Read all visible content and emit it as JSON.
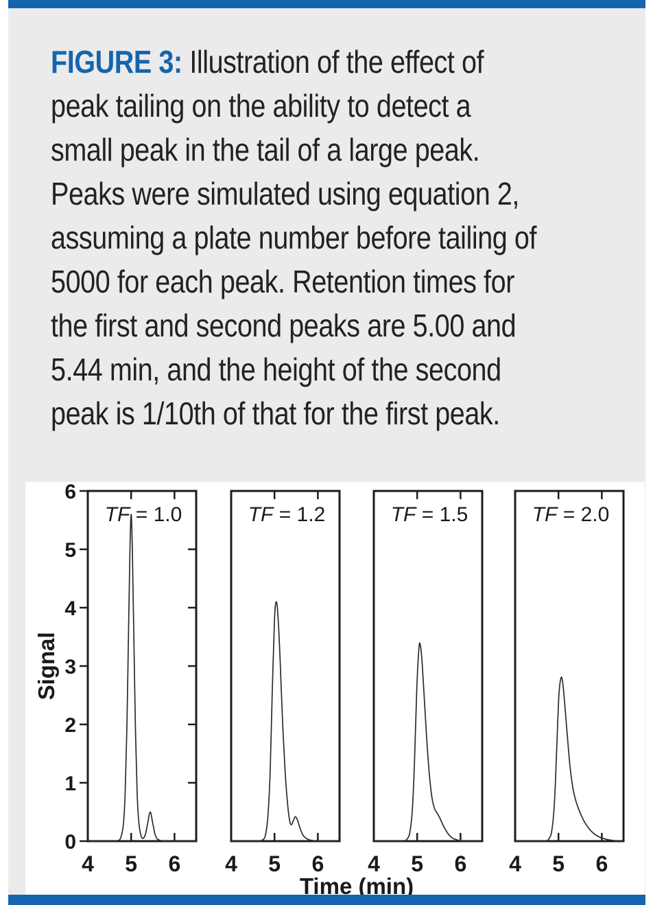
{
  "colors": {
    "accent_blue": "#1565ae",
    "box_gray": "#ebebeb",
    "caption_text": "#222222",
    "curve": "#2b2b2b",
    "axis": "#1c1c1c"
  },
  "caption": {
    "label": "FIGURE 3:",
    "lines": [
      " Illustration of the effect of",
      "peak tailing on the ability to detect a",
      "small peak in the tail of a large peak.",
      "Peaks were simulated using equation 2,",
      "assuming a plate number before tailing of",
      "5000 for each peak. Retention times for",
      "the first and second peaks are 5.00 and",
      "5.44 min, and the height of the second",
      "peak is 1/10th of that for the first peak."
    ]
  },
  "chart_data": {
    "type": "line",
    "title": "",
    "xlabel": "Time (min)",
    "ylabel": "Signal",
    "xlim": [
      4,
      6.5
    ],
    "ylim": [
      0,
      6
    ],
    "x_ticks": [
      4,
      5,
      6
    ],
    "y_ticks": [
      0,
      1,
      2,
      3,
      4,
      5,
      6
    ],
    "grid": false,
    "legend": "none",
    "panels": [
      {
        "tailing_factor": 1.0,
        "label_italic": "TF",
        "label_rest": " = 1.0",
        "peak1": {
          "retention_min": 5.0,
          "height": 5.6
        },
        "peak2": {
          "retention_min": 5.44,
          "height": 0.5
        },
        "series_points": [
          [
            4,
            0
          ],
          [
            4.35,
            0
          ],
          [
            4.6,
            0
          ],
          [
            4.7,
            0.01
          ],
          [
            4.76,
            0.06
          ],
          [
            4.82,
            0.28
          ],
          [
            4.86,
            0.8
          ],
          [
            4.9,
            1.9
          ],
          [
            4.94,
            3.6
          ],
          [
            4.97,
            4.9
          ],
          [
            5.0,
            5.6
          ],
          [
            5.03,
            4.9
          ],
          [
            5.06,
            3.6
          ],
          [
            5.1,
            1.9
          ],
          [
            5.14,
            0.8
          ],
          [
            5.18,
            0.3
          ],
          [
            5.23,
            0.09
          ],
          [
            5.28,
            0.05
          ],
          [
            5.33,
            0.12
          ],
          [
            5.38,
            0.3
          ],
          [
            5.44,
            0.5
          ],
          [
            5.5,
            0.3
          ],
          [
            5.55,
            0.12
          ],
          [
            5.6,
            0.04
          ],
          [
            5.68,
            0.01
          ],
          [
            5.8,
            0
          ],
          [
            6.1,
            0
          ],
          [
            6.5,
            0
          ]
        ]
      },
      {
        "tailing_factor": 1.2,
        "label_italic": "TF",
        "label_rest": " = 1.2",
        "peak1": {
          "retention_min": 5.04,
          "height": 4.1
        },
        "peak2": {
          "retention_min": 5.48,
          "height": 0.42
        },
        "series_points": [
          [
            4,
            0
          ],
          [
            4.4,
            0
          ],
          [
            4.62,
            0
          ],
          [
            4.72,
            0.02
          ],
          [
            4.79,
            0.1
          ],
          [
            4.85,
            0.45
          ],
          [
            4.9,
            1.2
          ],
          [
            4.95,
            2.6
          ],
          [
            5.0,
            3.8
          ],
          [
            5.04,
            4.1
          ],
          [
            5.08,
            3.85
          ],
          [
            5.13,
            3.1
          ],
          [
            5.18,
            2.15
          ],
          [
            5.24,
            1.25
          ],
          [
            5.3,
            0.65
          ],
          [
            5.35,
            0.35
          ],
          [
            5.39,
            0.28
          ],
          [
            5.44,
            0.36
          ],
          [
            5.48,
            0.42
          ],
          [
            5.53,
            0.36
          ],
          [
            5.59,
            0.22
          ],
          [
            5.66,
            0.1
          ],
          [
            5.75,
            0.04
          ],
          [
            5.88,
            0.01
          ],
          [
            6.05,
            0
          ],
          [
            6.5,
            0
          ]
        ]
      },
      {
        "tailing_factor": 1.5,
        "label_italic": "TF",
        "label_rest": " = 1.5",
        "peak1": {
          "retention_min": 5.07,
          "height": 3.37
        },
        "peak2": {
          "retention_min": 5.46,
          "height": 0.48
        },
        "series_points": [
          [
            4,
            0
          ],
          [
            4.4,
            0
          ],
          [
            4.66,
            0
          ],
          [
            4.76,
            0.03
          ],
          [
            4.83,
            0.15
          ],
          [
            4.89,
            0.55
          ],
          [
            4.94,
            1.4
          ],
          [
            4.99,
            2.6
          ],
          [
            5.04,
            3.3
          ],
          [
            5.07,
            3.37
          ],
          [
            5.11,
            3.1
          ],
          [
            5.16,
            2.5
          ],
          [
            5.22,
            1.75
          ],
          [
            5.28,
            1.15
          ],
          [
            5.34,
            0.75
          ],
          [
            5.4,
            0.56
          ],
          [
            5.46,
            0.48
          ],
          [
            5.52,
            0.4
          ],
          [
            5.58,
            0.3
          ],
          [
            5.65,
            0.2
          ],
          [
            5.73,
            0.11
          ],
          [
            5.82,
            0.05
          ],
          [
            5.93,
            0.02
          ],
          [
            6.08,
            0
          ],
          [
            6.5,
            0
          ]
        ]
      },
      {
        "tailing_factor": 2.0,
        "label_italic": "TF",
        "label_rest": " = 2.0",
        "peak1": {
          "retention_min": 5.06,
          "height": 2.8
        },
        "peak2": {
          "retention_min": 5.45,
          "height": 0.58
        },
        "series_points": [
          [
            4,
            0
          ],
          [
            4.4,
            0
          ],
          [
            4.68,
            0
          ],
          [
            4.78,
            0.04
          ],
          [
            4.85,
            0.2
          ],
          [
            4.91,
            0.7
          ],
          [
            4.96,
            1.6
          ],
          [
            5.01,
            2.5
          ],
          [
            5.06,
            2.8
          ],
          [
            5.1,
            2.7
          ],
          [
            5.15,
            2.3
          ],
          [
            5.21,
            1.75
          ],
          [
            5.27,
            1.25
          ],
          [
            5.33,
            0.92
          ],
          [
            5.39,
            0.72
          ],
          [
            5.45,
            0.58
          ],
          [
            5.52,
            0.45
          ],
          [
            5.6,
            0.33
          ],
          [
            5.68,
            0.24
          ],
          [
            5.77,
            0.16
          ],
          [
            5.87,
            0.1
          ],
          [
            5.98,
            0.06
          ],
          [
            6.12,
            0.03
          ],
          [
            6.28,
            0.01
          ],
          [
            6.45,
            0
          ],
          [
            6.5,
            0
          ]
        ]
      }
    ]
  }
}
